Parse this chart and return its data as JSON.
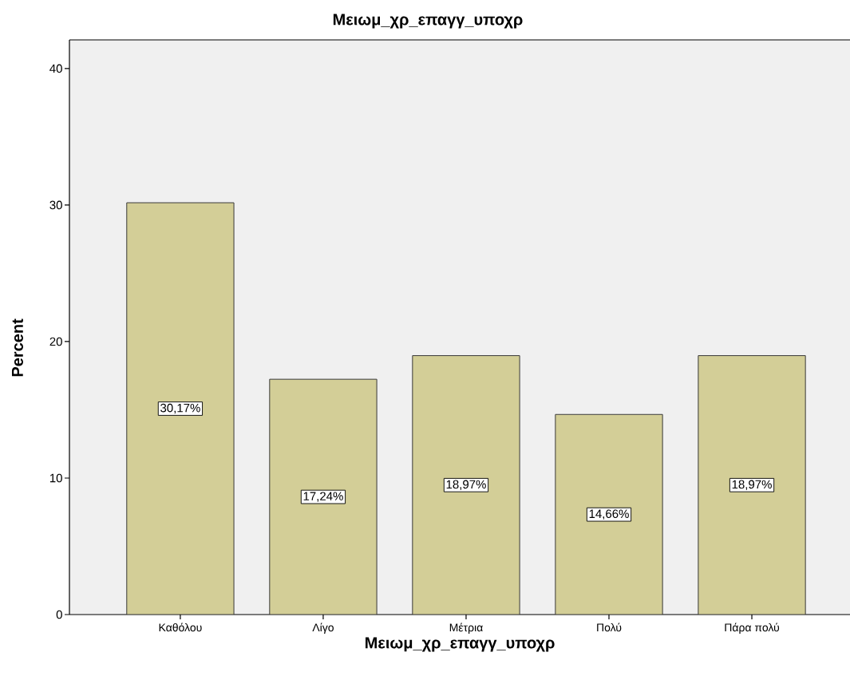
{
  "chart_data": {
    "type": "bar",
    "title": "Μειωμ_χρ_επαγγ_υποχρ",
    "xlabel": "Μειωμ_χρ_επαγγ_υποχρ",
    "ylabel": "Percent",
    "categories": [
      "Καθόλου",
      "Λίγο",
      "Μέτρια",
      "Πολύ",
      "Πάρα πολύ"
    ],
    "values": [
      30.17,
      17.24,
      18.97,
      14.66,
      18.97
    ],
    "value_labels": [
      "30,17%",
      "17,24%",
      "18,97%",
      "14,66%",
      "18,97%"
    ],
    "color": "#d3ce97",
    "ylim": [
      0,
      42.1
    ],
    "yticks": [
      0,
      10,
      20,
      30,
      40
    ]
  }
}
